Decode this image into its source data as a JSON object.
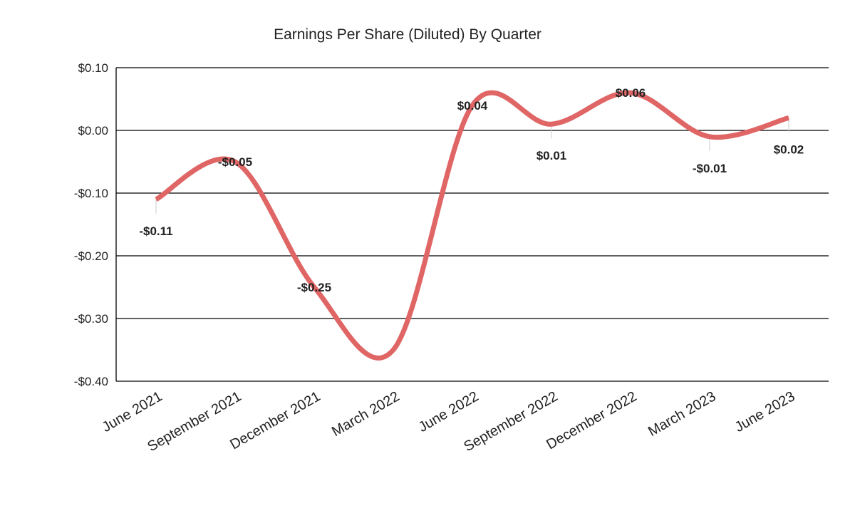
{
  "chart_data": {
    "type": "line",
    "title": "Earnings Per Share (Diluted) By Quarter",
    "xlabel": "",
    "ylabel": "",
    "categories": [
      "June 2021",
      "September 2021",
      "December 2021",
      "March 2022",
      "June 2022",
      "September 2022",
      "December 2022",
      "March 2023",
      "June 2023"
    ],
    "series": [
      {
        "values": [
          -0.11,
          -0.05,
          -0.25,
          -0.35,
          0.04,
          0.01,
          0.06,
          -0.01,
          0.02
        ],
        "labels": [
          "-$0.11",
          "-$0.05",
          "-$0.25",
          "",
          "$0.04",
          "$0.01",
          "$0.06",
          "-$0.01",
          "$0.02"
        ],
        "color": "#e06666"
      }
    ],
    "ylim": [
      -0.4,
      0.1
    ],
    "yticks": [
      0.1,
      0.0,
      -0.1,
      -0.2,
      -0.3,
      -0.4
    ],
    "ytick_labels": [
      "$0.10",
      "$0.00",
      "-$0.10",
      "-$0.20",
      "-$0.30",
      "-$0.40"
    ],
    "grid": true,
    "smooth": true
  }
}
